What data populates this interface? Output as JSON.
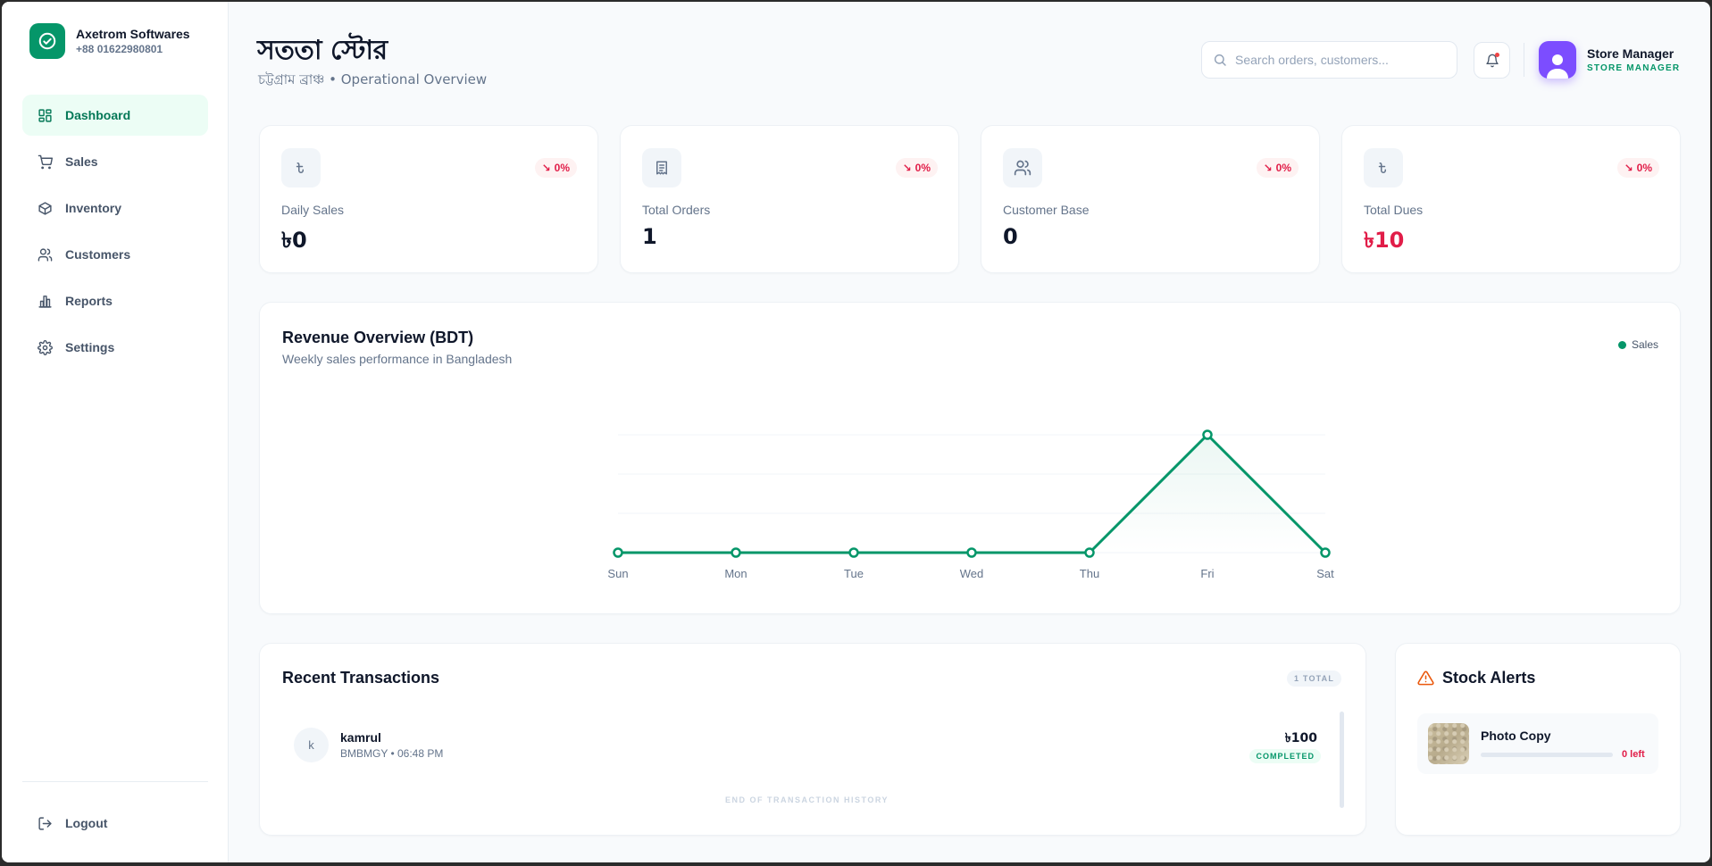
{
  "brand": {
    "name": "Axetrom Softwares",
    "phone": "+88 01622980801"
  },
  "sidebar": {
    "items": [
      {
        "label": "Dashboard",
        "icon": "dashboard-icon",
        "active": true
      },
      {
        "label": "Sales",
        "icon": "cart-icon",
        "active": false
      },
      {
        "label": "Inventory",
        "icon": "box-icon",
        "active": false
      },
      {
        "label": "Customers",
        "icon": "users-icon",
        "active": false
      },
      {
        "label": "Reports",
        "icon": "bar-chart-icon",
        "active": false
      },
      {
        "label": "Settings",
        "icon": "gear-icon",
        "active": false
      }
    ],
    "logout_label": "Logout"
  },
  "header": {
    "title": "সততা স্টোর",
    "subtitle": "চট্টগ্রাম ব্রাঞ্চ • Operational Overview",
    "search_placeholder": "Search orders, customers...",
    "user_name": "Store Manager",
    "user_role": "STORE MANAGER"
  },
  "stats": [
    {
      "label": "Daily Sales",
      "value": "৳0",
      "change": "0%",
      "icon": "taka-icon"
    },
    {
      "label": "Total Orders",
      "value": "1",
      "change": "0%",
      "icon": "receipt-icon"
    },
    {
      "label": "Customer Base",
      "value": "0",
      "change": "0%",
      "icon": "users-icon"
    },
    {
      "label": "Total Dues",
      "value": "৳10",
      "change": "0%",
      "icon": "taka-icon"
    }
  ],
  "chart": {
    "title": "Revenue Overview (BDT)",
    "subtitle": "Weekly sales performance in Bangladesh",
    "legend": "Sales"
  },
  "chart_data": {
    "type": "line",
    "categories": [
      "Sun",
      "Mon",
      "Tue",
      "Wed",
      "Thu",
      "Fri",
      "Sat"
    ],
    "series": [
      {
        "name": "Sales",
        "values": [
          0,
          0,
          0,
          0,
          0,
          100,
          0
        ]
      }
    ],
    "ylim": [
      0,
      100
    ],
    "grid": true,
    "legend_position": "top-right",
    "color": "#059669"
  },
  "transactions": {
    "title": "Recent Transactions",
    "count_label": "1 TOTAL",
    "items": [
      {
        "initial": "k",
        "name": "kamrul",
        "meta": "BMBMGY • 06:48 PM",
        "amount": "৳100",
        "status": "COMPLETED"
      }
    ],
    "end_label": "END OF TRANSACTION HISTORY"
  },
  "stock": {
    "title": "Stock Alerts",
    "items": [
      {
        "name": "Photo Copy",
        "left_label": "0 left",
        "level": 0
      }
    ]
  }
}
